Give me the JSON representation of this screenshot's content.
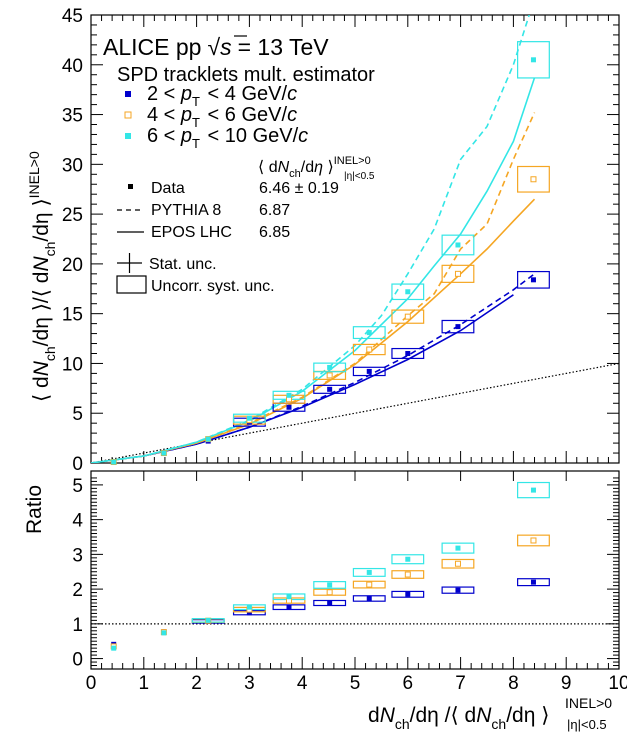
{
  "chart_data": {
    "type": "scatter",
    "annotations": {
      "collab": "ALICE pp",
      "sqrt": "√",
      "s": "s",
      "energy": "= 13 TeV",
      "estimator": "SPD tracklets mult. estimator",
      "norm_header": "⟨ dNch/dη ⟩|η|<0.5 INEL>0",
      "data_value": "6.46 ± 0.19",
      "pythia_value": "6.87",
      "epos_value": "6.85",
      "stat_unc": "Stat. unc.",
      "syst_unc": "Uncorr. syst. unc."
    },
    "legend_entries": {
      "data": "Data",
      "pythia": "PYTHIA 8",
      "epos": "EPOS LHC"
    },
    "colors": {
      "s1": "#0000cc",
      "s2": "#f5a623",
      "s3": "#33e6e6"
    },
    "series": [
      {
        "name": "2 < pT < 4 GeV/c",
        "label_parts": [
          "2 <",
          "p",
          "T",
          "< 4 GeV/",
          "c"
        ],
        "marker": "filled-square",
        "x": [
          0.43,
          1.38,
          2.22,
          3.0,
          3.75,
          4.52,
          5.27,
          6.0,
          6.95,
          8.38
        ],
        "y": [
          0.15,
          1.05,
          2.2,
          4.1,
          5.6,
          7.4,
          9.2,
          11.0,
          13.7,
          18.4
        ],
        "ratio": [
          0.41,
          0.77,
          1.07,
          1.32,
          1.48,
          1.6,
          1.73,
          1.85,
          1.97,
          2.2
        ],
        "pythia_curve": {
          "x": [
            0,
            1,
            2,
            3,
            4,
            5,
            6,
            7,
            8,
            8.4
          ],
          "y": [
            0,
            0.7,
            1.9,
            3.6,
            5.7,
            8.1,
            10.8,
            13.9,
            17.4,
            19.0
          ]
        },
        "epos_curve": {
          "x": [
            0,
            1,
            2,
            3,
            4,
            5,
            6,
            7,
            8
          ],
          "y": [
            0,
            0.7,
            1.9,
            3.6,
            5.6,
            7.9,
            10.4,
            13.3,
            16.9
          ]
        }
      },
      {
        "name": "4 < pT < 6 GeV/c",
        "label_parts": [
          "4 <",
          "p",
          "T",
          "< 6 GeV/",
          "c"
        ],
        "marker": "open-square",
        "x": [
          0.43,
          1.38,
          2.22,
          3.0,
          3.75,
          4.52,
          5.27,
          6.0,
          6.95,
          8.38
        ],
        "y": [
          0.1,
          1.0,
          2.4,
          4.3,
          6.4,
          8.8,
          11.4,
          14.7,
          19.0,
          28.5
        ],
        "ratio": [
          0.35,
          0.76,
          1.09,
          1.41,
          1.67,
          1.91,
          2.13,
          2.42,
          2.73,
          3.4
        ],
        "pythia_curve": {
          "x": [
            0,
            1,
            2,
            3,
            4,
            5,
            6,
            6.5,
            7,
            7.5,
            8,
            8.4
          ],
          "y": [
            0,
            0.7,
            2.0,
            4.0,
            6.6,
            10.0,
            14.8,
            17.0,
            21.5,
            24.0,
            30.5,
            35.2
          ]
        },
        "epos_curve": {
          "x": [
            0,
            1,
            2,
            3,
            4,
            5,
            6,
            7,
            7.5,
            8,
            8.4
          ],
          "y": [
            0,
            0.7,
            2.0,
            3.9,
            6.5,
            9.9,
            14.2,
            19.0,
            21.5,
            24.3,
            26.5
          ]
        }
      },
      {
        "name": "6 < pT < 10 GeV/c",
        "label_parts": [
          "6 <",
          "p",
          "T",
          "< 10 GeV/",
          "c"
        ],
        "marker": "filled-square",
        "x": [
          0.43,
          1.38,
          2.22,
          3.0,
          3.75,
          4.52,
          5.27,
          6.0,
          6.95,
          8.38
        ],
        "y": [
          0.1,
          1.0,
          2.4,
          4.5,
          6.8,
          9.6,
          13.1,
          17.2,
          21.9,
          40.5
        ],
        "ratio": [
          0.3,
          0.74,
          1.1,
          1.48,
          1.78,
          2.12,
          2.48,
          2.86,
          3.18,
          4.85
        ],
        "pythia_curve": {
          "x": [
            0,
            1,
            2,
            3,
            4,
            5,
            5.5,
            6,
            6.5,
            7,
            7.5,
            8,
            8.3
          ],
          "y": [
            0,
            0.7,
            2.1,
            4.3,
            7.4,
            11.8,
            14.8,
            19.0,
            23.5,
            30.5,
            33.8,
            40.0,
            45.0
          ]
        },
        "epos_curve": {
          "x": [
            0,
            1,
            2,
            3,
            4,
            5,
            6,
            6.5,
            7,
            7.5,
            8,
            8.4
          ],
          "y": [
            0,
            0.7,
            2.1,
            4.2,
            7.2,
            11.3,
            16.5,
            19.8,
            23.0,
            27.3,
            32.3,
            38.7
          ]
        }
      }
    ],
    "reference_line": {
      "style": "dotted",
      "x": [
        0,
        10
      ],
      "y": [
        0,
        10
      ],
      "ratio_level": 1
    },
    "upper_panel": {
      "xlim": [
        0,
        10
      ],
      "ylim": [
        0,
        45
      ],
      "yticks": [
        0,
        5,
        10,
        15,
        20,
        25,
        30,
        35,
        40,
        45
      ],
      "ytick_labels": [
        "0",
        "5",
        "10",
        "15",
        "20",
        "25",
        "30",
        "35",
        "40",
        "45"
      ],
      "ylabel": "⟨ dNch/dη ⟩/⟨ dNch/dη ⟩INEL>0"
    },
    "lower_panel": {
      "xlim": [
        0,
        10
      ],
      "ylim": [
        -0.3,
        5.4
      ],
      "yticks": [
        0,
        1,
        2,
        3,
        4,
        5
      ],
      "ytick_labels": [
        "0",
        "1",
        "2",
        "3",
        "4",
        "5"
      ],
      "ylabel": "Ratio",
      "xticks": [
        0,
        1,
        2,
        3,
        4,
        5,
        6,
        7,
        8,
        9,
        10
      ],
      "xtick_labels": [
        "0",
        "1",
        "2",
        "3",
        "4",
        "5",
        "6",
        "7",
        "8",
        "9",
        "10"
      ]
    },
    "xlabel": "dNch/dη /⟨ dNch/dη ⟩INEL>0 |η|<0.5"
  }
}
